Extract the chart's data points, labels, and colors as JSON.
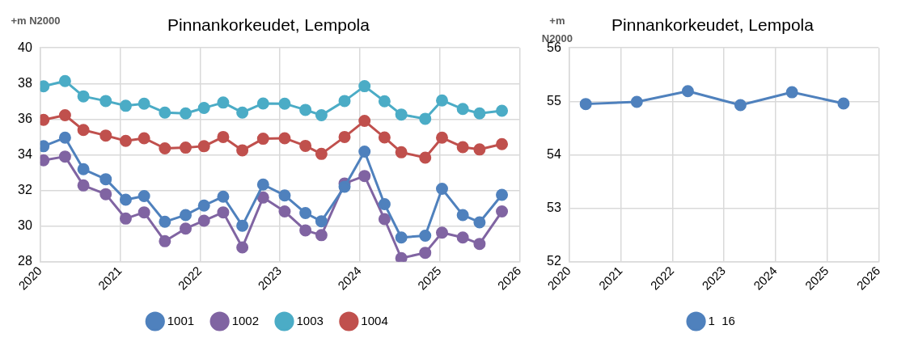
{
  "chart_data": [
    {
      "type": "line",
      "title": "Pinnankorkeudet, Lempola",
      "ylabel": "+m N2000",
      "x": [
        2020.04,
        2020.31,
        2020.54,
        2020.82,
        2021.07,
        2021.3,
        2021.56,
        2021.82,
        2022.05,
        2022.29,
        2022.53,
        2022.79,
        2023.06,
        2023.32,
        2023.52,
        2023.81,
        2024.06,
        2024.31,
        2024.52,
        2024.82,
        2025.03,
        2025.29,
        2025.5,
        2025.78
      ],
      "series": [
        {
          "name": "1001",
          "color": "#4f81bd",
          "values": [
            34.48,
            34.96,
            33.19,
            32.63,
            31.48,
            31.68,
            30.24,
            30.62,
            31.15,
            31.65,
            30.02,
            32.33,
            31.72,
            30.73,
            30.27,
            32.21,
            34.18,
            31.23,
            29.36,
            29.46,
            32.09,
            30.62,
            30.21,
            31.75
          ]
        },
        {
          "name": "1002",
          "color": "#8064a2",
          "values": [
            33.69,
            33.9,
            32.28,
            31.79,
            30.42,
            30.77,
            29.15,
            29.86,
            30.3,
            30.77,
            28.8,
            31.6,
            30.82,
            29.76,
            29.49,
            32.39,
            32.81,
            30.39,
            28.2,
            28.5,
            29.63,
            29.36,
            29.0,
            30.82
          ]
        },
        {
          "name": "1003",
          "color": "#4bacc6",
          "values": [
            37.84,
            38.14,
            37.28,
            37.02,
            36.75,
            36.87,
            36.37,
            36.32,
            36.63,
            36.93,
            36.37,
            36.88,
            36.87,
            36.52,
            36.22,
            37.02,
            37.85,
            37.0,
            36.26,
            36.02,
            37.05,
            36.57,
            36.32,
            36.47
          ]
        },
        {
          "name": "1004",
          "color": "#c0504d",
          "values": [
            35.96,
            36.22,
            35.39,
            35.08,
            34.78,
            34.93,
            34.36,
            34.4,
            34.48,
            35.0,
            34.25,
            34.9,
            34.93,
            34.5,
            34.05,
            35.0,
            35.9,
            34.97,
            34.14,
            33.84,
            34.96,
            34.43,
            34.3,
            34.6
          ]
        }
      ],
      "xlim": [
        2020,
        2026
      ],
      "xticks": [
        2020,
        2021,
        2022,
        2023,
        2024,
        2025,
        2026
      ],
      "ylim": [
        28,
        40
      ],
      "yticks": [
        28,
        30,
        32,
        34,
        36,
        38,
        40
      ],
      "grid": true,
      "legend": "bottom",
      "marker": "circle"
    },
    {
      "type": "line",
      "title": "Pinnankorkeudet, Lempola",
      "ylabel": "+m\nN2000",
      "x": [
        2020.32,
        2021.31,
        2022.3,
        2023.32,
        2024.32,
        2025.32
      ],
      "series": [
        {
          "name": "1  16",
          "color": "#4f81bd",
          "values": [
            54.95,
            54.99,
            55.19,
            54.93,
            55.17,
            54.96
          ]
        }
      ],
      "xlim": [
        2020,
        2026
      ],
      "xticks": [
        2020,
        2021,
        2022,
        2023,
        2024,
        2025,
        2026
      ],
      "ylim": [
        52,
        56
      ],
      "yticks": [
        52,
        53,
        54,
        55,
        56
      ],
      "grid": true,
      "legend": "bottom",
      "marker": "circle"
    }
  ]
}
